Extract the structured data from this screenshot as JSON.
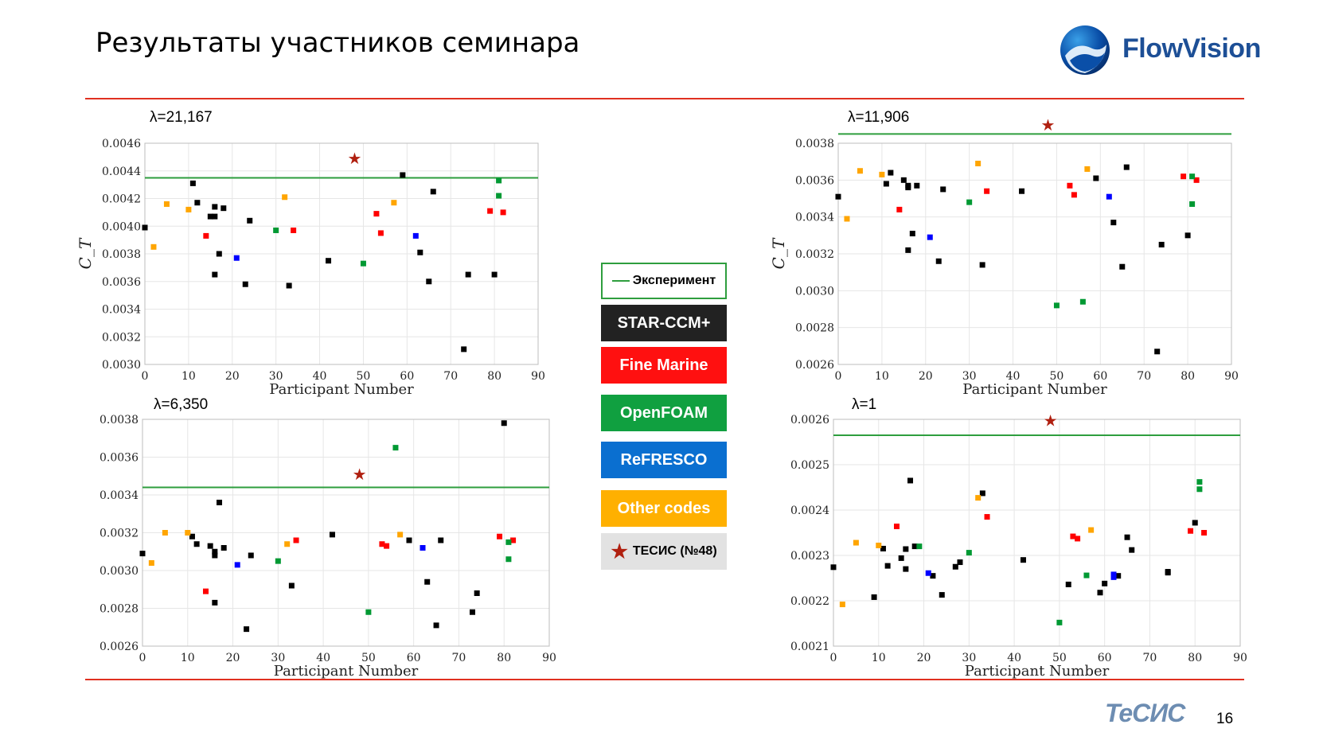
{
  "slide": {
    "title": "Результаты участников семинара",
    "brand": "FlowVision",
    "footer_logo": "ТеСИС",
    "page_number": "16"
  },
  "legend": [
    {
      "label": "Эксперимент",
      "kind": "line",
      "color": "#2e9e3e"
    },
    {
      "label": "STAR-CCM+",
      "kind": "box",
      "color": "#222222"
    },
    {
      "label": "Fine Marine",
      "kind": "box",
      "color": "#ff1010"
    },
    {
      "label": "OpenFOAM",
      "kind": "box",
      "color": "#10a040"
    },
    {
      "label": "ReFRESCO",
      "kind": "box",
      "color": "#0a6fd0"
    },
    {
      "label": "Other codes",
      "kind": "box",
      "color": "#ffb000"
    },
    {
      "label": "ТЕСИС (№48)",
      "kind": "star",
      "color": "#b02010"
    }
  ],
  "colors": {
    "star": "#000000",
    "fine": "#ff0000",
    "open": "#009933",
    "refresco": "#0000ff",
    "other": "#ffa500",
    "tesis": "#b02010",
    "exp": "#2e9e3e"
  },
  "chart_data": [
    {
      "type": "scatter",
      "label": "λ=21,167",
      "xlabel": "Participant Number",
      "ylabel": "C_T",
      "xlim": [
        0,
        90
      ],
      "ylim": [
        0.003,
        0.0046
      ],
      "xticks": [
        "0",
        "10",
        "20",
        "30",
        "40",
        "50",
        "60",
        "70",
        "80",
        "90"
      ],
      "yticks": [
        "0.0030",
        "0.0032",
        "0.0034",
        "0.0036",
        "0.0038",
        "0.0040",
        "0.0042",
        "0.0044",
        "0.0046"
      ],
      "experiment": 0.00435,
      "tesis": {
        "x": 48,
        "y": 0.00449
      },
      "points": [
        {
          "x": 0,
          "y": 0.00399,
          "c": "star"
        },
        {
          "x": 11,
          "y": 0.00431,
          "c": "star"
        },
        {
          "x": 12,
          "y": 0.00417,
          "c": "star"
        },
        {
          "x": 15,
          "y": 0.00407,
          "c": "star"
        },
        {
          "x": 16,
          "y": 0.00414,
          "c": "star"
        },
        {
          "x": 16,
          "y": 0.00407,
          "c": "star"
        },
        {
          "x": 16,
          "y": 0.00365,
          "c": "star"
        },
        {
          "x": 17,
          "y": 0.0038,
          "c": "star"
        },
        {
          "x": 18,
          "y": 0.00413,
          "c": "star"
        },
        {
          "x": 23,
          "y": 0.00358,
          "c": "star"
        },
        {
          "x": 24,
          "y": 0.00404,
          "c": "star"
        },
        {
          "x": 33,
          "y": 0.00357,
          "c": "star"
        },
        {
          "x": 42,
          "y": 0.00375,
          "c": "star"
        },
        {
          "x": 59,
          "y": 0.00437,
          "c": "star"
        },
        {
          "x": 63,
          "y": 0.00381,
          "c": "star"
        },
        {
          "x": 65,
          "y": 0.0036,
          "c": "star"
        },
        {
          "x": 66,
          "y": 0.00425,
          "c": "star"
        },
        {
          "x": 73,
          "y": 0.00311,
          "c": "star"
        },
        {
          "x": 74,
          "y": 0.00365,
          "c": "star"
        },
        {
          "x": 80,
          "y": 0.00365,
          "c": "star"
        },
        {
          "x": 14,
          "y": 0.00393,
          "c": "fine"
        },
        {
          "x": 34,
          "y": 0.00397,
          "c": "fine"
        },
        {
          "x": 53,
          "y": 0.00409,
          "c": "fine"
        },
        {
          "x": 54,
          "y": 0.00395,
          "c": "fine"
        },
        {
          "x": 79,
          "y": 0.00411,
          "c": "fine"
        },
        {
          "x": 82,
          "y": 0.0041,
          "c": "fine"
        },
        {
          "x": 30,
          "y": 0.00397,
          "c": "open"
        },
        {
          "x": 50,
          "y": 0.00373,
          "c": "open"
        },
        {
          "x": 81,
          "y": 0.00433,
          "c": "open"
        },
        {
          "x": 81,
          "y": 0.00422,
          "c": "open"
        },
        {
          "x": 21,
          "y": 0.00377,
          "c": "refresco"
        },
        {
          "x": 62,
          "y": 0.00393,
          "c": "refresco"
        },
        {
          "x": 2,
          "y": 0.00385,
          "c": "other"
        },
        {
          "x": 5,
          "y": 0.00416,
          "c": "other"
        },
        {
          "x": 10,
          "y": 0.00412,
          "c": "other"
        },
        {
          "x": 32,
          "y": 0.00421,
          "c": "other"
        },
        {
          "x": 57,
          "y": 0.00417,
          "c": "other"
        }
      ]
    },
    {
      "type": "scatter",
      "label": "λ=11,906",
      "xlabel": "Participant Number",
      "ylabel": "C_T",
      "xlim": [
        0,
        90
      ],
      "ylim": [
        0.0026,
        0.0038
      ],
      "xticks": [
        "0",
        "10",
        "20",
        "30",
        "40",
        "50",
        "60",
        "70",
        "80",
        "90"
      ],
      "yticks": [
        "0.0026",
        "0.0028",
        "0.0030",
        "0.0032",
        "0.0034",
        "0.0036",
        "0.0038"
      ],
      "experiment": 0.00385,
      "tesis": {
        "x": 48,
        "y": 0.0039
      },
      "points": [
        {
          "x": 0,
          "y": 0.00351,
          "c": "star"
        },
        {
          "x": 11,
          "y": 0.00358,
          "c": "star"
        },
        {
          "x": 12,
          "y": 0.00364,
          "c": "star"
        },
        {
          "x": 15,
          "y": 0.0036,
          "c": "star"
        },
        {
          "x": 16,
          "y": 0.00356,
          "c": "star"
        },
        {
          "x": 16,
          "y": 0.00357,
          "c": "star"
        },
        {
          "x": 16,
          "y": 0.00322,
          "c": "star"
        },
        {
          "x": 17,
          "y": 0.00331,
          "c": "star"
        },
        {
          "x": 18,
          "y": 0.00357,
          "c": "star"
        },
        {
          "x": 23,
          "y": 0.00316,
          "c": "star"
        },
        {
          "x": 24,
          "y": 0.00355,
          "c": "star"
        },
        {
          "x": 33,
          "y": 0.00314,
          "c": "star"
        },
        {
          "x": 42,
          "y": 0.00354,
          "c": "star"
        },
        {
          "x": 59,
          "y": 0.00361,
          "c": "star"
        },
        {
          "x": 63,
          "y": 0.00337,
          "c": "star"
        },
        {
          "x": 65,
          "y": 0.00313,
          "c": "star"
        },
        {
          "x": 66,
          "y": 0.00367,
          "c": "star"
        },
        {
          "x": 73,
          "y": 0.00267,
          "c": "star"
        },
        {
          "x": 74,
          "y": 0.00325,
          "c": "star"
        },
        {
          "x": 80,
          "y": 0.0033,
          "c": "star"
        },
        {
          "x": 14,
          "y": 0.00344,
          "c": "fine"
        },
        {
          "x": 34,
          "y": 0.00354,
          "c": "fine"
        },
        {
          "x": 53,
          "y": 0.00357,
          "c": "fine"
        },
        {
          "x": 54,
          "y": 0.00352,
          "c": "fine"
        },
        {
          "x": 79,
          "y": 0.00362,
          "c": "fine"
        },
        {
          "x": 82,
          "y": 0.0036,
          "c": "fine"
        },
        {
          "x": 30,
          "y": 0.00348,
          "c": "open"
        },
        {
          "x": 50,
          "y": 0.00292,
          "c": "open"
        },
        {
          "x": 56,
          "y": 0.00294,
          "c": "open"
        },
        {
          "x": 81,
          "y": 0.00362,
          "c": "open"
        },
        {
          "x": 81,
          "y": 0.00347,
          "c": "open"
        },
        {
          "x": 21,
          "y": 0.00329,
          "c": "refresco"
        },
        {
          "x": 62,
          "y": 0.00351,
          "c": "refresco"
        },
        {
          "x": 2,
          "y": 0.00339,
          "c": "other"
        },
        {
          "x": 5,
          "y": 0.00365,
          "c": "other"
        },
        {
          "x": 10,
          "y": 0.00363,
          "c": "other"
        },
        {
          "x": 32,
          "y": 0.00369,
          "c": "other"
        },
        {
          "x": 57,
          "y": 0.00366,
          "c": "other"
        }
      ]
    },
    {
      "type": "scatter",
      "label": "λ=6,350",
      "xlabel": "Participant Number",
      "ylabel": "",
      "xlim": [
        0,
        90
      ],
      "ylim": [
        0.0026,
        0.0038
      ],
      "xticks": [
        "0",
        "10",
        "20",
        "30",
        "40",
        "50",
        "60",
        "70",
        "80",
        "90"
      ],
      "yticks": [
        "0.0026",
        "0.0028",
        "0.0030",
        "0.0032",
        "0.0034",
        "0.0036",
        "0.0038"
      ],
      "experiment": 0.00344,
      "tesis": {
        "x": 48,
        "y": 0.00351
      },
      "points": [
        {
          "x": 0,
          "y": 0.00309,
          "c": "star"
        },
        {
          "x": 11,
          "y": 0.00318,
          "c": "star"
        },
        {
          "x": 12,
          "y": 0.00314,
          "c": "star"
        },
        {
          "x": 15,
          "y": 0.00313,
          "c": "star"
        },
        {
          "x": 16,
          "y": 0.0031,
          "c": "star"
        },
        {
          "x": 16,
          "y": 0.00308,
          "c": "star"
        },
        {
          "x": 16,
          "y": 0.00283,
          "c": "star"
        },
        {
          "x": 17,
          "y": 0.00336,
          "c": "star"
        },
        {
          "x": 18,
          "y": 0.00312,
          "c": "star"
        },
        {
          "x": 23,
          "y": 0.00269,
          "c": "star"
        },
        {
          "x": 24,
          "y": 0.00308,
          "c": "star"
        },
        {
          "x": 33,
          "y": 0.00292,
          "c": "star"
        },
        {
          "x": 42,
          "y": 0.00319,
          "c": "star"
        },
        {
          "x": 59,
          "y": 0.00316,
          "c": "star"
        },
        {
          "x": 63,
          "y": 0.00294,
          "c": "star"
        },
        {
          "x": 65,
          "y": 0.00271,
          "c": "star"
        },
        {
          "x": 66,
          "y": 0.00316,
          "c": "star"
        },
        {
          "x": 73,
          "y": 0.00278,
          "c": "star"
        },
        {
          "x": 74,
          "y": 0.00288,
          "c": "star"
        },
        {
          "x": 80,
          "y": 0.00378,
          "c": "star"
        },
        {
          "x": 14,
          "y": 0.00289,
          "c": "fine"
        },
        {
          "x": 34,
          "y": 0.00316,
          "c": "fine"
        },
        {
          "x": 53,
          "y": 0.00314,
          "c": "fine"
        },
        {
          "x": 54,
          "y": 0.00313,
          "c": "fine"
        },
        {
          "x": 79,
          "y": 0.00318,
          "c": "fine"
        },
        {
          "x": 82,
          "y": 0.00316,
          "c": "fine"
        },
        {
          "x": 30,
          "y": 0.00305,
          "c": "open"
        },
        {
          "x": 50,
          "y": 0.00278,
          "c": "open"
        },
        {
          "x": 56,
          "y": 0.00365,
          "c": "open"
        },
        {
          "x": 81,
          "y": 0.00315,
          "c": "open"
        },
        {
          "x": 81,
          "y": 0.00306,
          "c": "open"
        },
        {
          "x": 21,
          "y": 0.00303,
          "c": "refresco"
        },
        {
          "x": 62,
          "y": 0.00312,
          "c": "refresco"
        },
        {
          "x": 2,
          "y": 0.00304,
          "c": "other"
        },
        {
          "x": 5,
          "y": 0.0032,
          "c": "other"
        },
        {
          "x": 10,
          "y": 0.0032,
          "c": "other"
        },
        {
          "x": 32,
          "y": 0.00314,
          "c": "other"
        },
        {
          "x": 57,
          "y": 0.00319,
          "c": "other"
        }
      ]
    },
    {
      "type": "scatter",
      "label": "λ=1",
      "xlabel": "Participant Number",
      "ylabel": "",
      "xlim": [
        0,
        90
      ],
      "ylim": [
        0.0021,
        0.0026
      ],
      "xticks": [
        "0",
        "10",
        "20",
        "30",
        "40",
        "50",
        "60",
        "70",
        "80",
        "90"
      ],
      "yticks": [
        "0.0021",
        "0.0022",
        "0.0023",
        "0.0024",
        "0.0025",
        "0.0026"
      ],
      "experiment": 0.002565,
      "tesis": {
        "x": 48,
        "y": 0.002597
      },
      "points": [
        {
          "x": 0,
          "y": 0.002274,
          "c": "star"
        },
        {
          "x": 9,
          "y": 0.002208,
          "c": "star"
        },
        {
          "x": 11,
          "y": 0.002315,
          "c": "star"
        },
        {
          "x": 12,
          "y": 0.002277,
          "c": "star"
        },
        {
          "x": 15,
          "y": 0.002294,
          "c": "star"
        },
        {
          "x": 16,
          "y": 0.002314,
          "c": "star"
        },
        {
          "x": 16,
          "y": 0.00227,
          "c": "star"
        },
        {
          "x": 17,
          "y": 0.002465,
          "c": "star"
        },
        {
          "x": 18,
          "y": 0.00232,
          "c": "star"
        },
        {
          "x": 22,
          "y": 0.002255,
          "c": "star"
        },
        {
          "x": 24,
          "y": 0.002213,
          "c": "star"
        },
        {
          "x": 27,
          "y": 0.002275,
          "c": "star"
        },
        {
          "x": 28,
          "y": 0.002285,
          "c": "star"
        },
        {
          "x": 33,
          "y": 0.002437,
          "c": "star"
        },
        {
          "x": 42,
          "y": 0.00229,
          "c": "star"
        },
        {
          "x": 52,
          "y": 0.002236,
          "c": "star"
        },
        {
          "x": 59,
          "y": 0.002218,
          "c": "star"
        },
        {
          "x": 60,
          "y": 0.002238,
          "c": "star"
        },
        {
          "x": 63,
          "y": 0.002255,
          "c": "star"
        },
        {
          "x": 65,
          "y": 0.00234,
          "c": "star"
        },
        {
          "x": 66,
          "y": 0.002312,
          "c": "star"
        },
        {
          "x": 74,
          "y": 0.002264,
          "c": "star"
        },
        {
          "x": 74,
          "y": 0.002262,
          "c": "star"
        },
        {
          "x": 80,
          "y": 0.002372,
          "c": "star"
        },
        {
          "x": 14,
          "y": 0.002364,
          "c": "fine"
        },
        {
          "x": 34,
          "y": 0.002385,
          "c": "fine"
        },
        {
          "x": 53,
          "y": 0.002342,
          "c": "fine"
        },
        {
          "x": 54,
          "y": 0.002337,
          "c": "fine"
        },
        {
          "x": 79,
          "y": 0.002354,
          "c": "fine"
        },
        {
          "x": 82,
          "y": 0.00235,
          "c": "fine"
        },
        {
          "x": 19,
          "y": 0.00232,
          "c": "open"
        },
        {
          "x": 30,
          "y": 0.002306,
          "c": "open"
        },
        {
          "x": 50,
          "y": 0.002152,
          "c": "open"
        },
        {
          "x": 56,
          "y": 0.002256,
          "c": "open"
        },
        {
          "x": 81,
          "y": 0.002462,
          "c": "open"
        },
        {
          "x": 81,
          "y": 0.002446,
          "c": "open"
        },
        {
          "x": 21,
          "y": 0.002261,
          "c": "refresco"
        },
        {
          "x": 62,
          "y": 0.002258,
          "c": "refresco"
        },
        {
          "x": 62,
          "y": 0.002252,
          "c": "refresco"
        },
        {
          "x": 2,
          "y": 0.002192,
          "c": "other"
        },
        {
          "x": 5,
          "y": 0.002328,
          "c": "other"
        },
        {
          "x": 10,
          "y": 0.002322,
          "c": "other"
        },
        {
          "x": 32,
          "y": 0.002427,
          "c": "other"
        },
        {
          "x": 57,
          "y": 0.002356,
          "c": "other"
        }
      ]
    }
  ]
}
